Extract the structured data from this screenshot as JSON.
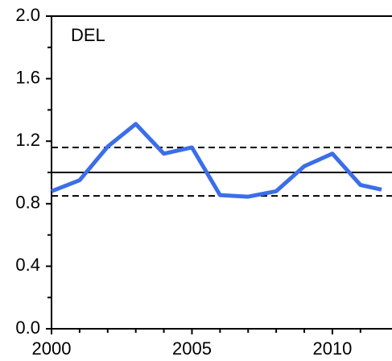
{
  "chart_data": {
    "type": "line",
    "annotation": "DEL",
    "x": [
      2000,
      2001,
      2002,
      2003,
      2004,
      2005,
      2006,
      2007,
      2008,
      2009,
      2010,
      2011,
      2011.75
    ],
    "series": [
      {
        "color": "#3b6ee8",
        "values": [
          0.88,
          0.95,
          1.165,
          1.31,
          1.12,
          1.16,
          0.855,
          0.845,
          0.88,
          1.04,
          1.12,
          0.92,
          0.89
        ]
      }
    ],
    "reference_lines": [
      {
        "value": 1.0,
        "style": "solid"
      },
      {
        "value": 1.16,
        "style": "dashed"
      },
      {
        "value": 0.85,
        "style": "dashed"
      }
    ],
    "xlim": [
      2000,
      2011.75
    ],
    "xticks": [
      2000,
      2005,
      2010
    ],
    "xminor_ticks": [
      2001,
      2002,
      2003,
      2004,
      2006,
      2007,
      2008,
      2009,
      2011
    ],
    "ylim": [
      0,
      2.0
    ],
    "yticks": [
      {
        "value": 0,
        "label": "0.0"
      },
      {
        "value": 0.4,
        "label": "0.4"
      },
      {
        "value": 0.8,
        "label": "0.8"
      },
      {
        "value": 1.2,
        "label": "1.2"
      },
      {
        "value": 1.6,
        "label": "1.6"
      },
      {
        "value": 2.0,
        "label": "2.0"
      }
    ],
    "yminor_ticks": [
      0.2,
      0.6,
      1.0,
      1.4,
      1.8
    ],
    "grid": false
  }
}
